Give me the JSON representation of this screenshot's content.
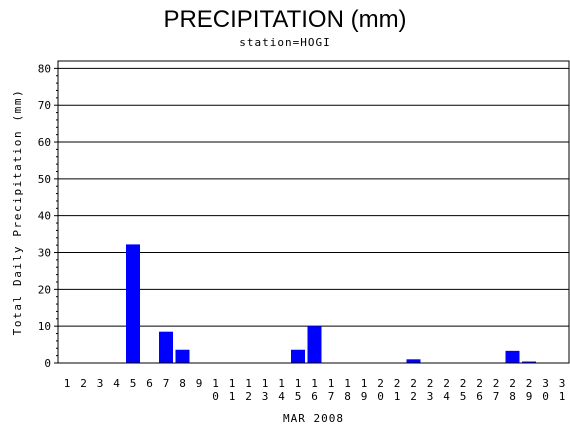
{
  "chart_data": {
    "type": "bar",
    "title": "PRECIPITATION (mm)",
    "subtitle": "station=HOGI",
    "xlabel": "MAR 2008",
    "ylabel": "Total Daily Precipitation (mm)",
    "ylim": [
      0,
      82
    ],
    "yticks": [
      0,
      10,
      20,
      30,
      40,
      50,
      60,
      70,
      80
    ],
    "grid": true,
    "bar_color": "#0000ff",
    "categories": [
      "1",
      "2",
      "3",
      "4",
      "5",
      "6",
      "7",
      "8",
      "9",
      "10",
      "11",
      "12",
      "13",
      "14",
      "15",
      "16",
      "17",
      "18",
      "19",
      "20",
      "21",
      "22",
      "23",
      "24",
      "25",
      "26",
      "27",
      "28",
      "29",
      "30",
      "31"
    ],
    "values": [
      0,
      0,
      0,
      0,
      32.2,
      0,
      8.5,
      3.6,
      0,
      0,
      0,
      0,
      0,
      0,
      3.6,
      10,
      0,
      0,
      0,
      0,
      0,
      1,
      0,
      0,
      0,
      0,
      0,
      3.3,
      0.4,
      0,
      0
    ]
  }
}
